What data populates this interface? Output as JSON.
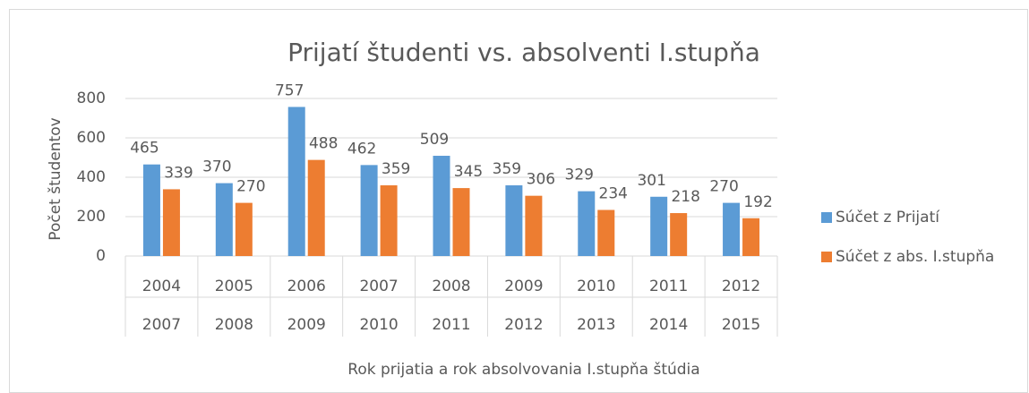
{
  "chart_data": {
    "type": "bar",
    "title": "Prijatí študenti vs. absolventi I.stupňa",
    "y_label": "Počet študentov",
    "x_label": "Rok prijatia a rok absolvovania I.stupňa štúdia",
    "categories": [
      "2004",
      "2005",
      "2006",
      "2007",
      "2008",
      "2009",
      "2010",
      "2011",
      "2012"
    ],
    "categories_level2": [
      "2007",
      "2008",
      "2009",
      "2010",
      "2011",
      "2012",
      "2013",
      "2014",
      "2015"
    ],
    "series": [
      {
        "name": "Súčet z Prijatí",
        "color": "#5b9bd5",
        "values": [
          465,
          370,
          757,
          462,
          509,
          359,
          329,
          301,
          270
        ]
      },
      {
        "name": "Súčet z abs. I.stupňa",
        "color": "#ed7d31",
        "values": [
          339,
          270,
          488,
          359,
          345,
          306,
          234,
          218,
          192
        ]
      }
    ],
    "ylim": [
      0,
      800
    ],
    "yticks": [
      0,
      200,
      400,
      600,
      800
    ],
    "grid": true,
    "legend": "right"
  }
}
